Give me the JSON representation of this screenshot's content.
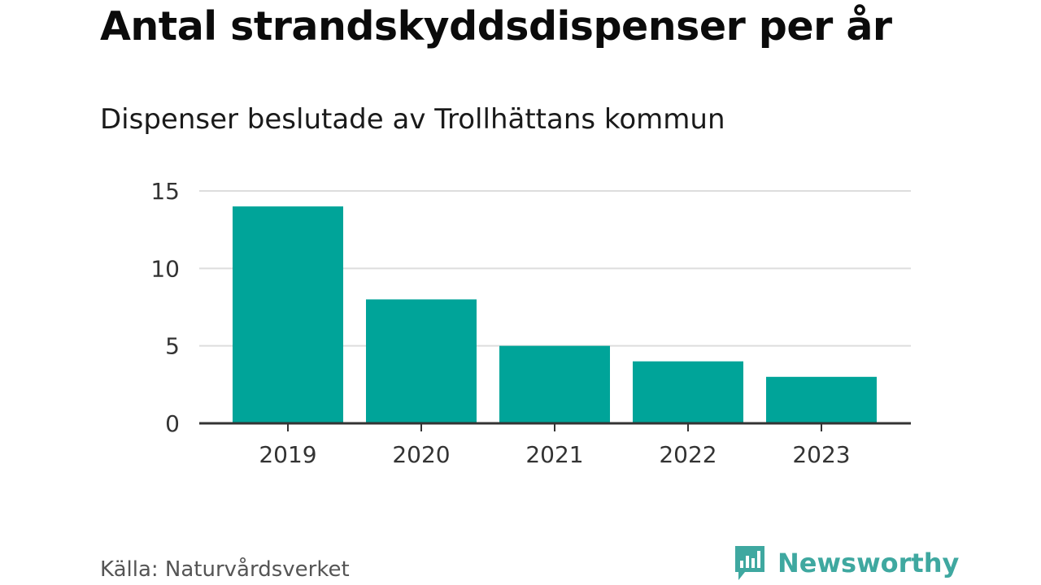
{
  "header": {
    "title": "Antal strandskyddsdispenser per år",
    "subtitle": "Dispenser beslutade av Trollhättans kommun"
  },
  "footer": {
    "source": "Källa: Naturvårdsverket",
    "brand": "Newsworthy"
  },
  "colors": {
    "bar": "#00a499",
    "grid": "#dddddd",
    "axis": "#333333",
    "brand": "#3fa8a0"
  },
  "chart_data": {
    "type": "bar",
    "title": "Antal strandskyddsdispenser per år",
    "subtitle": "Dispenser beslutade av Trollhättans kommun",
    "categories": [
      "2019",
      "2020",
      "2021",
      "2022",
      "2023"
    ],
    "values": [
      14,
      8,
      5,
      4,
      3
    ],
    "xlabel": "",
    "ylabel": "",
    "ylim": [
      0,
      15
    ],
    "yticks": [
      "0",
      "5",
      "10",
      "15"
    ],
    "grid": true,
    "legend": "none"
  }
}
